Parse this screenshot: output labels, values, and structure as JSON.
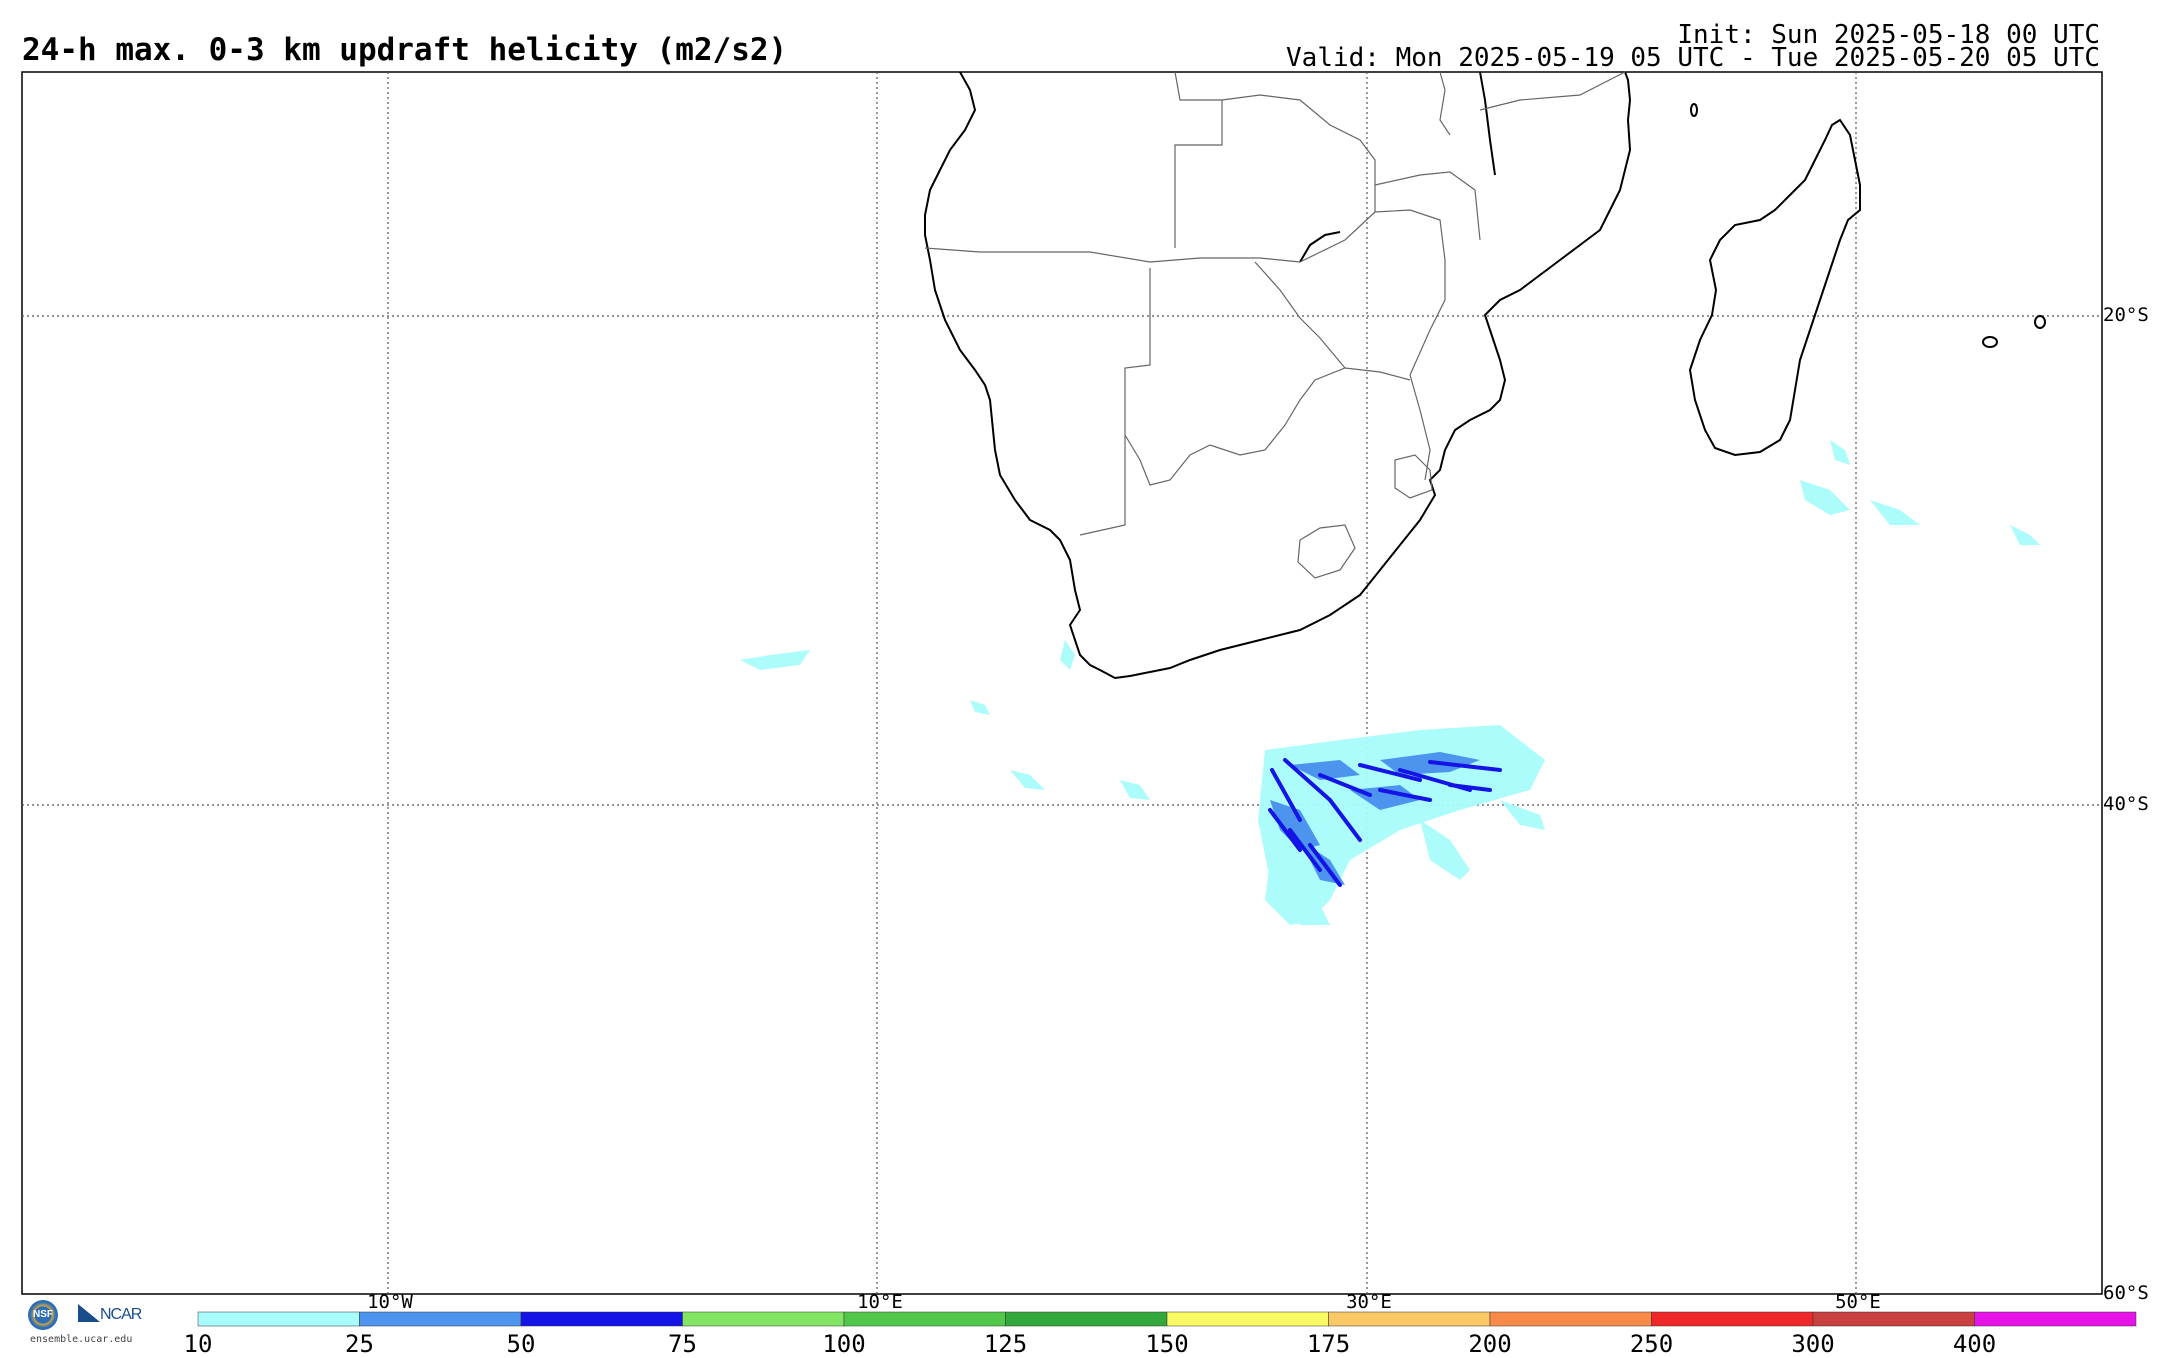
{
  "title": "24-h max. 0-3 km updraft helicity (m2/s2)",
  "init": "Init: Sun 2025-05-18 00 UTC",
  "valid": "Valid: Mon 2025-05-19 05 UTC - Tue 2025-05-20 05 UTC",
  "map": {
    "lon_labels": [
      "10°W",
      "10°E",
      "30°E",
      "50°E"
    ],
    "lat_labels": [
      "20°S",
      "40°S",
      "60°S"
    ],
    "grid_lines": "dotted",
    "land_fill": "#ffffff",
    "coast_color": "#000000",
    "border_color": "#555555"
  },
  "colorbar": {
    "levels": [
      "10",
      "25",
      "50",
      "75",
      "100",
      "125",
      "150",
      "175",
      "200",
      "250",
      "300",
      "400"
    ],
    "colors": [
      "#a8fcfc",
      "#4d94ee",
      "#1414e6",
      "#82e664",
      "#52c84a",
      "#32a83c",
      "#fafa64",
      "#fac864",
      "#fa8a4a",
      "#ee2828",
      "#c84040",
      "#e614e6"
    ]
  },
  "logo": {
    "nsf": "NSF",
    "ncar": "NCAR",
    "site": "ensemble.ucar.edu"
  }
}
